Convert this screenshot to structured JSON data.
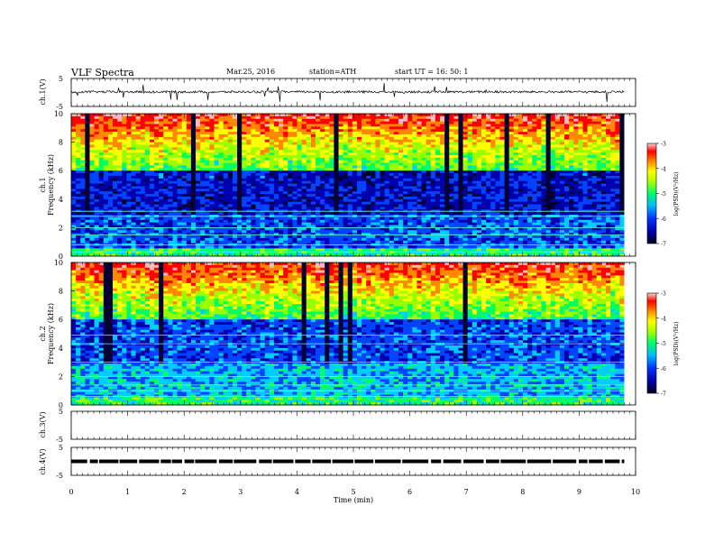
{
  "header": {
    "title": "VLF  Spectra",
    "date": "Mar.25, 2016",
    "station": "station=ATH",
    "start": "start  UT  =    16: 50: 1"
  },
  "chart_data": [
    {
      "type": "line",
      "name": "ch1-waveform",
      "ylabel": "ch.1(V)",
      "ylim": [
        -5,
        5
      ],
      "ticks": [
        5,
        -5
      ],
      "xlim": [
        0,
        10
      ],
      "note_values": "waveform centered near 0 V with spikes"
    },
    {
      "type": "heatmap",
      "name": "ch1-spectrogram",
      "ylabel_channel": "ch.1",
      "ylabel": "Frequency  (kHz)",
      "ylim": [
        0,
        10
      ],
      "yticks": [
        0,
        2,
        4,
        6,
        8,
        10
      ],
      "xlim": [
        0,
        9.8
      ],
      "colorbar": {
        "label": "log(PSD)(V²/Hz)",
        "range": [
          -7,
          -3
        ],
        "ticks": [
          "-3",
          "-4",
          "-5",
          "-6",
          "-7"
        ]
      }
    },
    {
      "type": "heatmap",
      "name": "ch2-spectrogram",
      "ylabel_channel": "ch.2",
      "ylabel": "Frequency  (kHz)",
      "ylim": [
        0,
        10
      ],
      "yticks": [
        0,
        2,
        4,
        6,
        8,
        10
      ],
      "xlim": [
        0,
        9.8
      ],
      "colorbar": {
        "label": "log(PSD)(V²/Hz)",
        "range": [
          -7,
          -3
        ],
        "ticks": [
          "-3",
          "-4",
          "-5",
          "-6",
          "-7"
        ]
      }
    },
    {
      "type": "line",
      "name": "ch3-waveform",
      "ylabel": "ch.3(V)",
      "ylim": [
        -5,
        5
      ],
      "ticks": [
        5,
        -5
      ],
      "values": []
    },
    {
      "type": "line",
      "name": "ch4-waveform",
      "ylabel": "ch.4(V)",
      "ylim": [
        -5,
        5
      ],
      "ticks": [
        5,
        -5
      ],
      "level": 0
    }
  ],
  "xaxis": {
    "label": "Time  (min)",
    "range": [
      0,
      10
    ],
    "ticks": [
      "0",
      "1",
      "2",
      "3",
      "4",
      "5",
      "6",
      "7",
      "8",
      "9",
      "10"
    ]
  },
  "colors": {
    "colormap": [
      "#000033",
      "#0000aa",
      "#0044ff",
      "#00ccff",
      "#00ff66",
      "#99ff00",
      "#ffff00",
      "#ff8800",
      "#ff0000",
      "#ffbbbb"
    ]
  }
}
